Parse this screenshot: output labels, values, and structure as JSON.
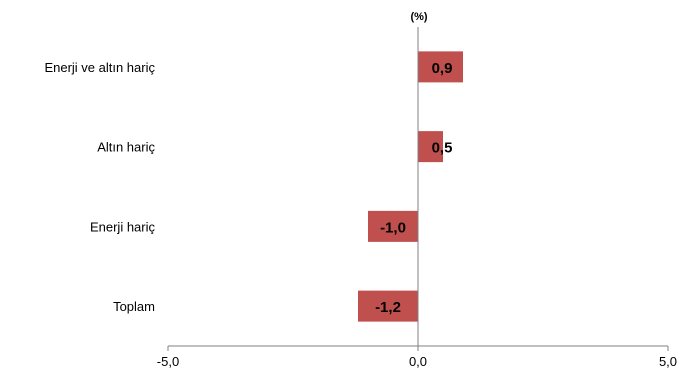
{
  "chart_data": {
    "type": "bar",
    "orientation": "horizontal",
    "unit_label": "(%)",
    "categories": [
      "Enerji ve altın hariç",
      "Altın hariç",
      "Enerji hariç",
      "Toplam"
    ],
    "values": [
      0.9,
      0.5,
      -1.0,
      -1.2
    ],
    "value_labels": [
      "0,9",
      "0,5",
      "-1,0",
      "-1,2"
    ],
    "xlim": [
      -5.0,
      5.0
    ],
    "x_ticks": [
      -5.0,
      0.0,
      5.0
    ],
    "x_tick_labels": [
      "-5,0",
      "0,0",
      "5,0"
    ],
    "bar_color": "#c0504d",
    "grid": false,
    "legend": "none"
  }
}
